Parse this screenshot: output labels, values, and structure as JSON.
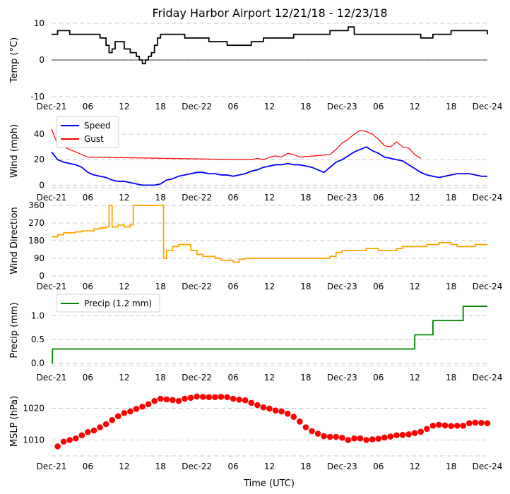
{
  "title": "Friday Harbor Airport 12/21/18 - 12/23/18",
  "xlabel": "Time (UTC)",
  "colors": {
    "temp": "#000000",
    "speed": "#0000ff",
    "gust": "#ff0000",
    "direction": "#ffa500",
    "precip": "#008000",
    "pressure": "#ff0000",
    "grid": "#c8c8c8"
  },
  "chart_data": [
    {
      "id": "temp",
      "type": "line",
      "ylabel": "Temp (°C)",
      "ylim": [
        -10,
        10
      ],
      "yticks": [
        10,
        0,
        -10
      ],
      "xlim": [
        0,
        72
      ],
      "xticks": [
        "Dec-21",
        "06",
        "12",
        "18",
        "Dec-22",
        "06",
        "12",
        "18",
        "Dec-23",
        "06",
        "12",
        "18",
        "Dec-24"
      ],
      "zero_line": true,
      "series": [
        {
          "name": "Temp",
          "color": "#000000",
          "step": true,
          "x": [
            0,
            1,
            2,
            3,
            4,
            5,
            6,
            7,
            8,
            9,
            9.5,
            10,
            10.5,
            11,
            12,
            13,
            14,
            14.5,
            15,
            15.5,
            16,
            16.5,
            17,
            17.5,
            18,
            19,
            20,
            21,
            22,
            23,
            24,
            25,
            26,
            27,
            28,
            29,
            30,
            31,
            32,
            33,
            34,
            35,
            36,
            37,
            38,
            39,
            40,
            41,
            42,
            43,
            44,
            45,
            46,
            47,
            48,
            49,
            50,
            51,
            52,
            53,
            54,
            55,
            56,
            57,
            58,
            59,
            60,
            61,
            62,
            63,
            64,
            65,
            66,
            67,
            68,
            69,
            70,
            71,
            72
          ],
          "y": [
            7,
            8,
            8,
            7,
            7,
            7,
            7,
            7,
            6,
            4,
            2,
            3,
            5,
            5,
            3,
            2,
            1,
            0,
            -1,
            0,
            1,
            2,
            4,
            6,
            7,
            7,
            7,
            7,
            6,
            6,
            6,
            6,
            5,
            5,
            5,
            4,
            4,
            4,
            4,
            5,
            5,
            6,
            6,
            6,
            6,
            6,
            7,
            7,
            7,
            7,
            7,
            7,
            8,
            8,
            8,
            9,
            7,
            7,
            7,
            7,
            7,
            7,
            7,
            7,
            7,
            7,
            7,
            6,
            6,
            7,
            7,
            7,
            8,
            8,
            8,
            8,
            8,
            8,
            7
          ]
        }
      ]
    },
    {
      "id": "wind",
      "type": "line",
      "ylabel": "Wind (mph)",
      "ylim": [
        -2,
        50
      ],
      "yticks": [
        40,
        20,
        0
      ],
      "xlim": [
        0,
        72
      ],
      "xticks": [
        "Dec-21",
        "06",
        "12",
        "18",
        "Dec-22",
        "06",
        "12",
        "18",
        "Dec-23",
        "06",
        "12",
        "18",
        "Dec-24"
      ],
      "legend": "top-left",
      "series": [
        {
          "name": "Speed",
          "color": "#0000ff",
          "x": [
            0,
            1,
            2,
            3,
            4,
            5,
            6,
            7,
            8,
            9,
            10,
            11,
            12,
            13,
            14,
            15,
            16,
            17,
            18,
            19,
            20,
            21,
            22,
            23,
            24,
            25,
            26,
            27,
            28,
            29,
            30,
            31,
            32,
            33,
            34,
            35,
            36,
            37,
            38,
            39,
            40,
            41,
            42,
            43,
            44,
            45,
            46,
            47,
            48,
            49,
            50,
            51,
            52,
            53,
            54,
            55,
            56,
            57,
            58,
            59,
            60,
            61,
            62,
            63,
            64,
            65,
            66,
            67,
            68,
            69,
            70,
            71,
            72
          ],
          "y": [
            26,
            20,
            18,
            17,
            16,
            14,
            10,
            8,
            7,
            6,
            4,
            3,
            3,
            2,
            1,
            0,
            0,
            0,
            1,
            4,
            5,
            7,
            8,
            9,
            10,
            10,
            9,
            9,
            8,
            8,
            7,
            8,
            9,
            11,
            12,
            14,
            15,
            16,
            16,
            17,
            16,
            16,
            15,
            14,
            12,
            10,
            14,
            18,
            20,
            23,
            26,
            28,
            30,
            27,
            25,
            22,
            21,
            20,
            19,
            16,
            13,
            10,
            8,
            7,
            6,
            7,
            8,
            9,
            9,
            9,
            8,
            7,
            7
          ]
        },
        {
          "name": "Gust",
          "color": "#ff0000",
          "x": [
            0,
            1,
            2,
            3,
            4,
            5,
            6,
            32,
            33,
            34,
            35,
            36,
            37,
            38,
            39,
            40,
            41,
            46,
            47,
            48,
            49,
            50,
            51,
            52,
            53,
            54,
            55,
            56,
            57,
            58,
            59,
            60,
            61
          ],
          "y": [
            44,
            32,
            30,
            28,
            26,
            24,
            22,
            20,
            20,
            21,
            20,
            22,
            23,
            22,
            25,
            24,
            22,
            24,
            28,
            33,
            36,
            40,
            43,
            42,
            40,
            36,
            31,
            30,
            34,
            30,
            29,
            24,
            21
          ]
        }
      ]
    },
    {
      "id": "direction",
      "type": "line",
      "ylabel": "Wind Direction",
      "ylim": [
        0,
        360
      ],
      "yticks": [
        360,
        270,
        180,
        90,
        0
      ],
      "xlim": [
        0,
        72
      ],
      "xticks": [
        "Dec-21",
        "06",
        "12",
        "18",
        "Dec-22",
        "06",
        "12",
        "18",
        "Dec-23",
        "06",
        "12",
        "18",
        "Dec-24"
      ],
      "series": [
        {
          "name": "Direction",
          "color": "#ffa500",
          "step": true,
          "x": [
            0,
            1,
            2,
            3,
            4,
            5,
            6,
            7,
            8,
            9,
            9.5,
            10,
            11,
            12,
            13,
            13.5,
            14,
            15,
            16,
            17,
            18,
            18.5,
            19,
            20,
            21,
            22,
            23,
            24,
            25,
            26,
            27,
            28,
            29,
            30,
            31,
            32,
            33,
            34,
            35,
            36,
            37,
            38,
            39,
            40,
            41,
            42,
            43,
            44,
            45,
            46,
            47,
            48,
            49,
            50,
            51,
            52,
            53,
            54,
            55,
            56,
            57,
            58,
            59,
            60,
            61,
            62,
            63,
            64,
            65,
            66,
            67,
            68,
            69,
            70,
            71,
            72
          ],
          "y": [
            200,
            210,
            220,
            220,
            225,
            230,
            230,
            240,
            245,
            250,
            360,
            250,
            260,
            250,
            260,
            360,
            360,
            360,
            360,
            360,
            360,
            90,
            130,
            150,
            160,
            160,
            130,
            110,
            100,
            100,
            90,
            80,
            80,
            70,
            85,
            90,
            90,
            90,
            90,
            90,
            90,
            90,
            90,
            90,
            90,
            90,
            90,
            90,
            90,
            100,
            120,
            130,
            130,
            130,
            130,
            140,
            140,
            130,
            130,
            130,
            140,
            150,
            150,
            150,
            150,
            160,
            160,
            170,
            170,
            160,
            150,
            150,
            150,
            160,
            160,
            160
          ]
        }
      ]
    },
    {
      "id": "precip",
      "type": "line",
      "ylabel": "Precip (mm)",
      "ylim": [
        -0.05,
        1.35
      ],
      "yticks": [
        1.0,
        0.5,
        0.0
      ],
      "xlim": [
        0,
        72
      ],
      "xticks": [
        "Dec-21",
        "06",
        "12",
        "18",
        "Dec-22",
        "06",
        "12",
        "18",
        "Dec-23",
        "06",
        "12",
        "18",
        "Dec-24"
      ],
      "legend": "top-left",
      "series": [
        {
          "name": "Precip (1.2 mm)",
          "color": "#008000",
          "step": true,
          "x": [
            0,
            0.15,
            59,
            60,
            62,
            63,
            65,
            66,
            67,
            68,
            70,
            71,
            72
          ],
          "y": [
            0.0,
            0.3,
            0.3,
            0.6,
            0.6,
            0.9,
            0.9,
            0.9,
            0.9,
            1.2,
            1.2,
            1.2,
            1.2
          ]
        }
      ]
    },
    {
      "id": "mslp",
      "type": "scatter",
      "ylabel": "MSLP (hPa)",
      "ylim": [
        1005,
        1025
      ],
      "yticks": [
        1020,
        1010
      ],
      "xlim": [
        0,
        72
      ],
      "xticks": [
        "Dec-21",
        "06",
        "12",
        "18",
        "Dec-22",
        "06",
        "12",
        "18",
        "Dec-23",
        "06",
        "12",
        "18",
        "Dec-24"
      ],
      "series": [
        {
          "name": "MSLP",
          "color": "#ff0000",
          "x": [
            1,
            2,
            3,
            4,
            5,
            6,
            7,
            8,
            9,
            10,
            11,
            12,
            13,
            14,
            15,
            16,
            17,
            18,
            19,
            20,
            21,
            22,
            23,
            24,
            25,
            26,
            27,
            28,
            29,
            30,
            31,
            32,
            33,
            34,
            35,
            36,
            37,
            38,
            39,
            40,
            41,
            42,
            43,
            44,
            45,
            46,
            47,
            48,
            49,
            50,
            51,
            52,
            53,
            54,
            55,
            56,
            57,
            58,
            59,
            60,
            61,
            62,
            63,
            64,
            65,
            66,
            67,
            68,
            69,
            70,
            71,
            72
          ],
          "y": [
            1008,
            1009.5,
            1010,
            1010.5,
            1011.5,
            1012.5,
            1013,
            1014,
            1015,
            1016.3,
            1017.5,
            1018.5,
            1019,
            1019.8,
            1020.5,
            1021.3,
            1022.3,
            1023,
            1022.8,
            1022.6,
            1022.3,
            1023,
            1023.3,
            1023.7,
            1023.6,
            1023.5,
            1023.5,
            1023.6,
            1023.5,
            1023,
            1022.7,
            1022.5,
            1021.7,
            1021,
            1020.3,
            1019.9,
            1019.3,
            1019,
            1018.3,
            1017.3,
            1015.8,
            1014,
            1012.8,
            1012,
            1011.2,
            1011,
            1011,
            1010.7,
            1010,
            1010.5,
            1010.5,
            1010,
            1010.2,
            1010.4,
            1010.8,
            1011.1,
            1011.5,
            1011.6,
            1011.8,
            1012.2,
            1012.6,
            1013.5,
            1014.5,
            1014.8,
            1014.6,
            1014.4,
            1014.5,
            1014.5,
            1015.3,
            1015.5,
            1015.4,
            1015.3
          ]
        }
      ]
    }
  ]
}
